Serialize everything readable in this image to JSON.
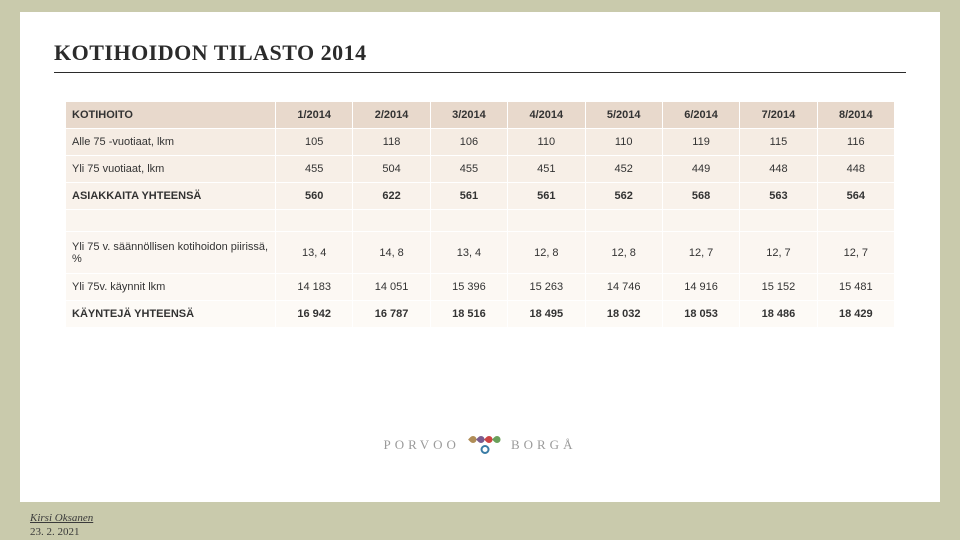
{
  "title": "KOTIHOIDON TILASTO 2014",
  "table": {
    "header_label": "KOTIHOITO",
    "columns": [
      "1/2014",
      "2/2014",
      "3/2014",
      "4/2014",
      "5/2014",
      "6/2014",
      "7/2014",
      "8/2014"
    ],
    "rows": [
      {
        "label": "Alle 75 -vuotiaat, lkm",
        "values": [
          "105",
          "118",
          "106",
          "110",
          "110",
          "119",
          "115",
          "116"
        ],
        "cls": "r0"
      },
      {
        "label": "Yli 75 vuotiaat, lkm",
        "values": [
          "455",
          "504",
          "455",
          "451",
          "452",
          "449",
          "448",
          "448"
        ],
        "cls": "r1"
      },
      {
        "label": "ASIAKKAITA YHTEENSÄ",
        "values": [
          "560",
          "622",
          "561",
          "561",
          "562",
          "568",
          "563",
          "564"
        ],
        "cls": "r2"
      },
      {
        "spacer": true
      },
      {
        "label": "Yli 75 v. säännöllisen kotihoidon piirissä, %",
        "values": [
          "13, 4",
          "14, 8",
          "13, 4",
          "12, 8",
          "12, 8",
          "12, 7",
          "12, 7",
          "12, 7"
        ],
        "cls": "r4"
      },
      {
        "label": "Yli 75v. käynnit lkm",
        "values": [
          "14 183",
          "14 051",
          "15 396",
          "15 263",
          "14 746",
          "14 916",
          "15 152",
          "15 481"
        ],
        "cls": "r5"
      },
      {
        "label": "KÄYNTEJÄ YHTEENSÄ",
        "values": [
          "16 942",
          "16 787",
          "18 516",
          "18 495",
          "18 032",
          "18 053",
          "18 486",
          "18 429"
        ],
        "cls": "r6"
      }
    ]
  },
  "logo": {
    "left_text": "PORVOO",
    "right_text": "BORGÅ"
  },
  "footer": {
    "author": "Kirsi Oksanen",
    "date": "23. 2. 2021"
  },
  "colors": {
    "page_bg": "#c9caac",
    "slide_bg": "#ffffff",
    "header_row_bg": "#e8d9cc",
    "row_bgs": [
      "#f5ece3",
      "#f7efe7",
      "#f9f2eb",
      "#faf5ef",
      "#fbf6f1",
      "#fcf8f3",
      "#fdfaf6"
    ]
  }
}
